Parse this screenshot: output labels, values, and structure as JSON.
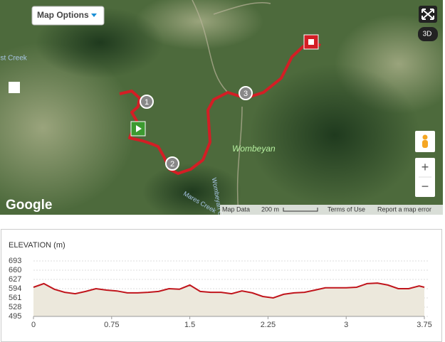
{
  "map": {
    "options_button": "Map Options",
    "place_label": "Wombeyan",
    "creek_labels": [
      "Forest Creek",
      "Wombeyan Creek",
      "Mares Creek"
    ],
    "waypoints": [
      "1",
      "2",
      "3"
    ],
    "controls": {
      "view_3d": "3D",
      "zoom_in": "+",
      "zoom_out": "−"
    },
    "logo": "Google",
    "footer": {
      "map_data": "Map Data",
      "scale": "200 m",
      "terms": "Terms of Use",
      "report": "Report a map error"
    }
  },
  "chart_data": {
    "type": "area",
    "title": "ELEVATION (m)",
    "color": "#c0151c",
    "fill": "#ece8dc",
    "x": [
      0,
      0.1,
      0.2,
      0.3,
      0.4,
      0.5,
      0.6,
      0.7,
      0.8,
      0.9,
      1.0,
      1.1,
      1.2,
      1.3,
      1.4,
      1.5,
      1.6,
      1.7,
      1.8,
      1.9,
      2.0,
      2.1,
      2.2,
      2.3,
      2.4,
      2.5,
      2.6,
      2.7,
      2.8,
      2.9,
      3.0,
      3.1,
      3.2,
      3.3,
      3.4,
      3.5,
      3.6,
      3.7,
      3.75
    ],
    "values": [
      599,
      612,
      592,
      581,
      576,
      584,
      594,
      589,
      586,
      579,
      579,
      581,
      584,
      594,
      592,
      607,
      584,
      581,
      581,
      576,
      586,
      579,
      566,
      561,
      574,
      579,
      581,
      589,
      597,
      597,
      597,
      599,
      612,
      614,
      607,
      594,
      594,
      604,
      599
    ],
    "xlim": [
      0,
      3.75
    ],
    "xticks": [
      0,
      0.75,
      1.5,
      2.25,
      3,
      3.75
    ],
    "ylim": [
      495,
      693
    ],
    "yticks": [
      495,
      528,
      561,
      594,
      627,
      660,
      693
    ],
    "grid": true
  }
}
